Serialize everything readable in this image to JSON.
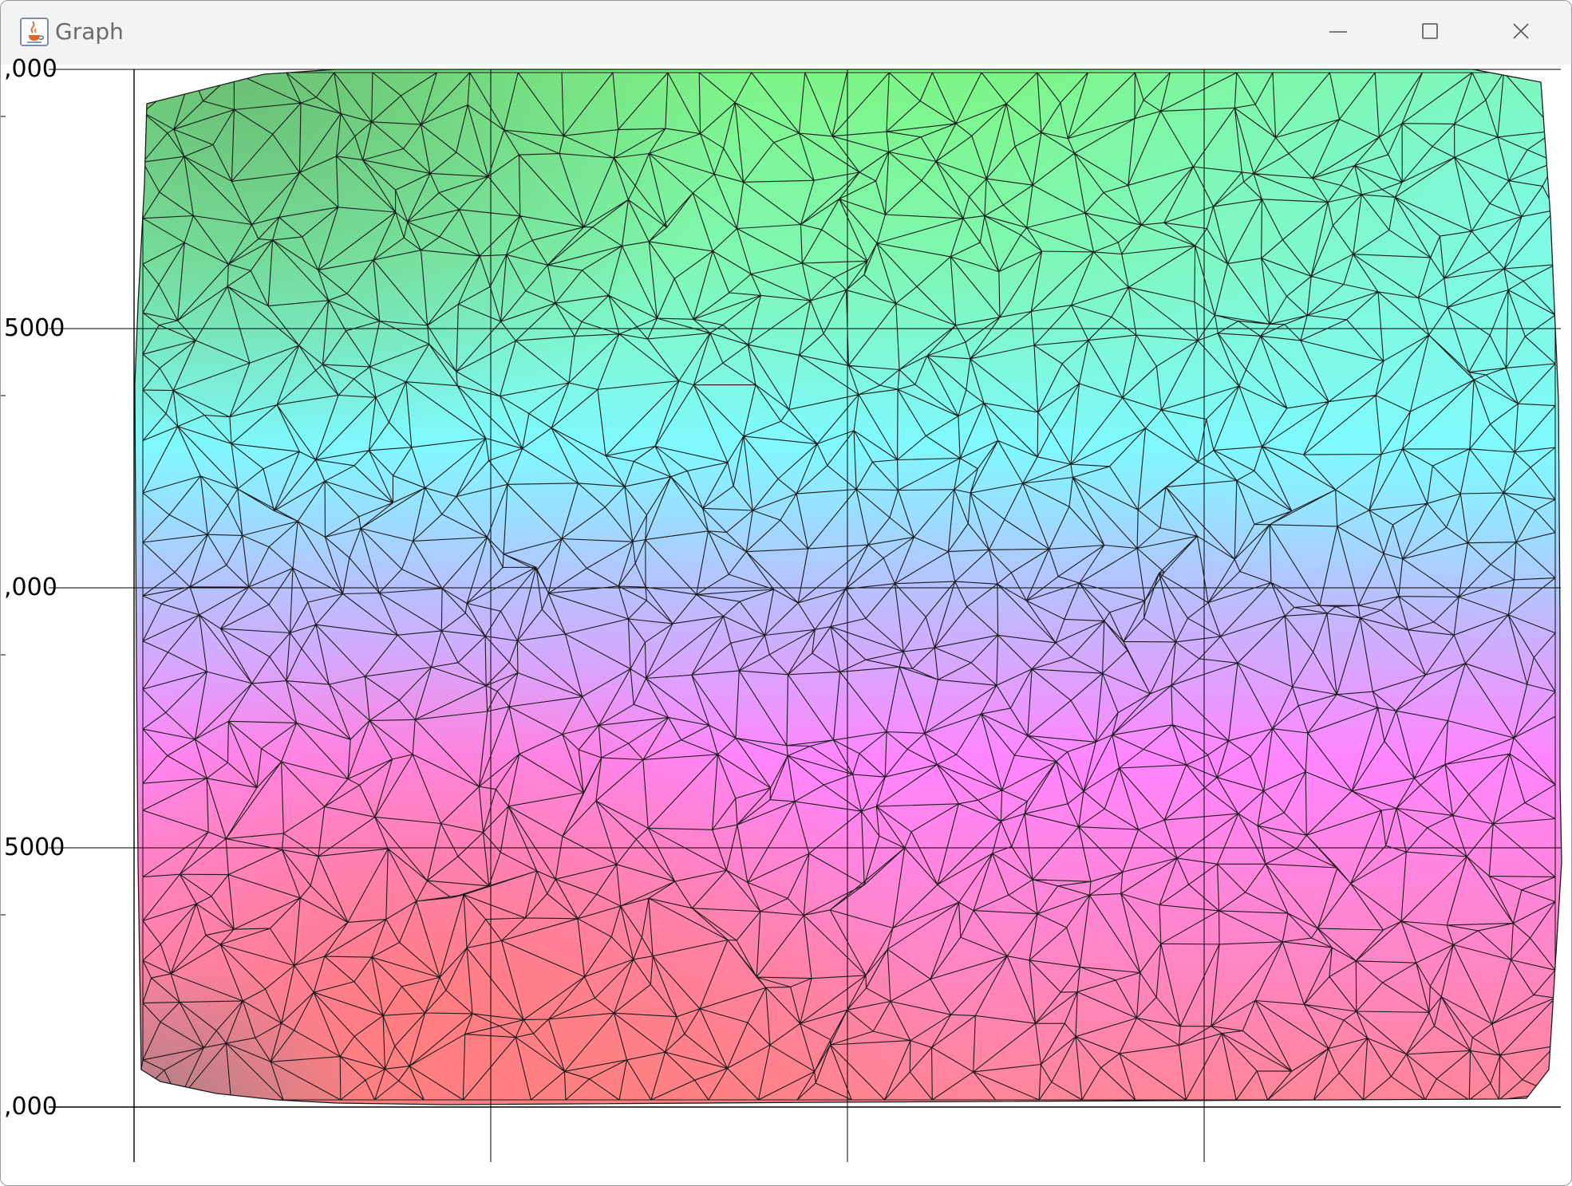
{
  "window": {
    "title": "Graph",
    "controls": {
      "minimize_icon": "minimize-icon",
      "maximize_icon": "maximize-icon",
      "close_icon": "close-icon"
    },
    "app_icon": "java-coffee-cup-icon"
  },
  "chart_data": {
    "type": "triangulated surface (color-mapped mesh)",
    "y_tick_labels": [
      ",000",
      "5000",
      ",000",
      "5000",
      ",000"
    ],
    "x_tick_labels": [],
    "grid": true,
    "colors": {
      "top_left": "#6fc27a",
      "top_center": "#7ef586",
      "top_right": "#7ffbe0",
      "middle": "#7ff9ff",
      "lower_middle": "#d0a8ff",
      "magenta_band": "#ff85ff",
      "bottom_left": "#ff7f7f",
      "bottom_corner": "#c97f86"
    }
  }
}
